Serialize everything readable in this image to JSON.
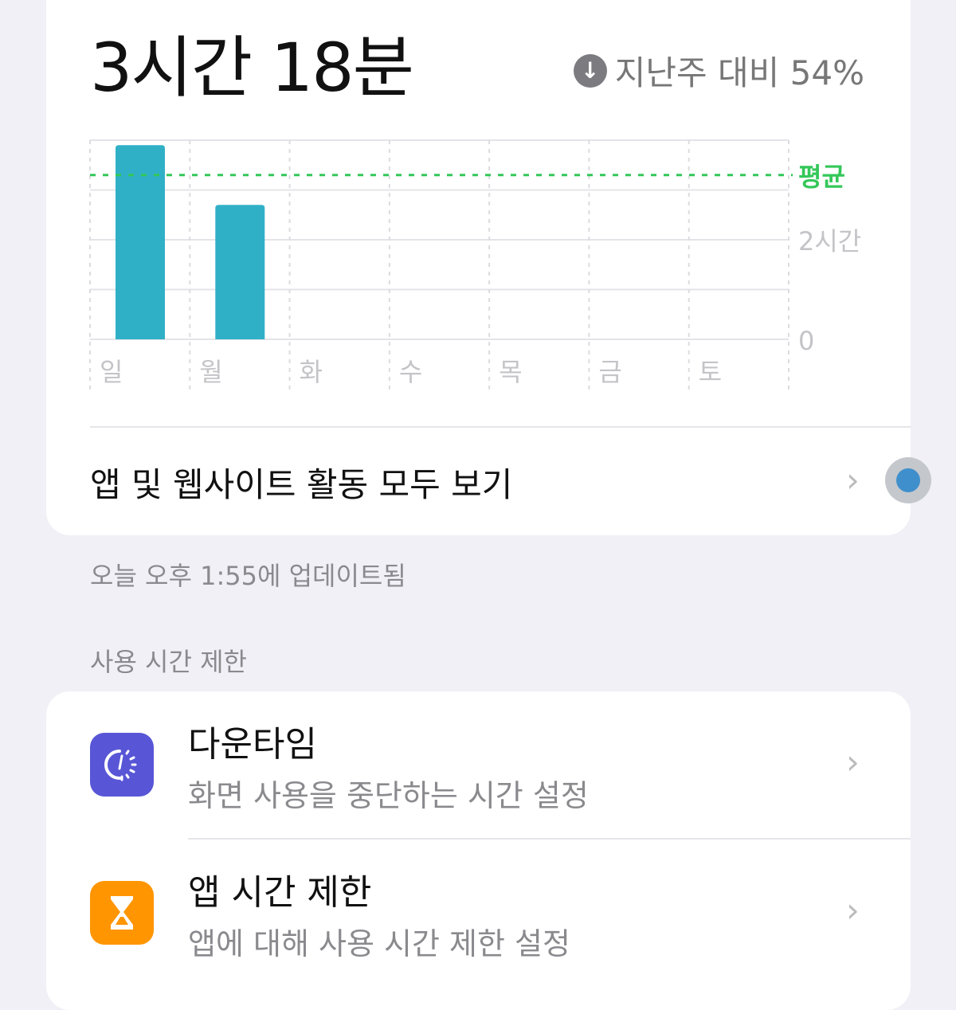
{
  "summary": {
    "total": "3시간 18분",
    "compare_text": "지난주 대비 54%",
    "compare_icon": "arrow-down-circle-icon"
  },
  "chart_data": {
    "type": "bar",
    "categories": [
      "일",
      "월",
      "화",
      "수",
      "목",
      "금",
      "토"
    ],
    "values": [
      3.9,
      2.7,
      0,
      0,
      0,
      0,
      0
    ],
    "yunit": "hours",
    "ylim": [
      0,
      4
    ],
    "y_tick_labels": [
      {
        "value": 2,
        "label": "2시간"
      },
      {
        "value": 0,
        "label": "0"
      }
    ],
    "average": {
      "value": 3.3,
      "label": "평균",
      "color": "#34c759"
    },
    "bar_color": "#30b0c7",
    "grid": true
  },
  "all_activity_label": "앱 및 웹사이트 활동 모두 보기",
  "updated": "오늘 오후 1:55에 업데이트됨",
  "limits_section": "사용 시간 제한",
  "items": [
    {
      "title": "다운타임",
      "subtitle": "화면 사용을 중단하는 시간 설정",
      "icon": "downtime-icon",
      "color": "#5856d6"
    },
    {
      "title": "앱 시간 제한",
      "subtitle": "앱에 대해 사용 시간 제한 설정",
      "icon": "hourglass-icon",
      "color": "#ff9500"
    }
  ]
}
